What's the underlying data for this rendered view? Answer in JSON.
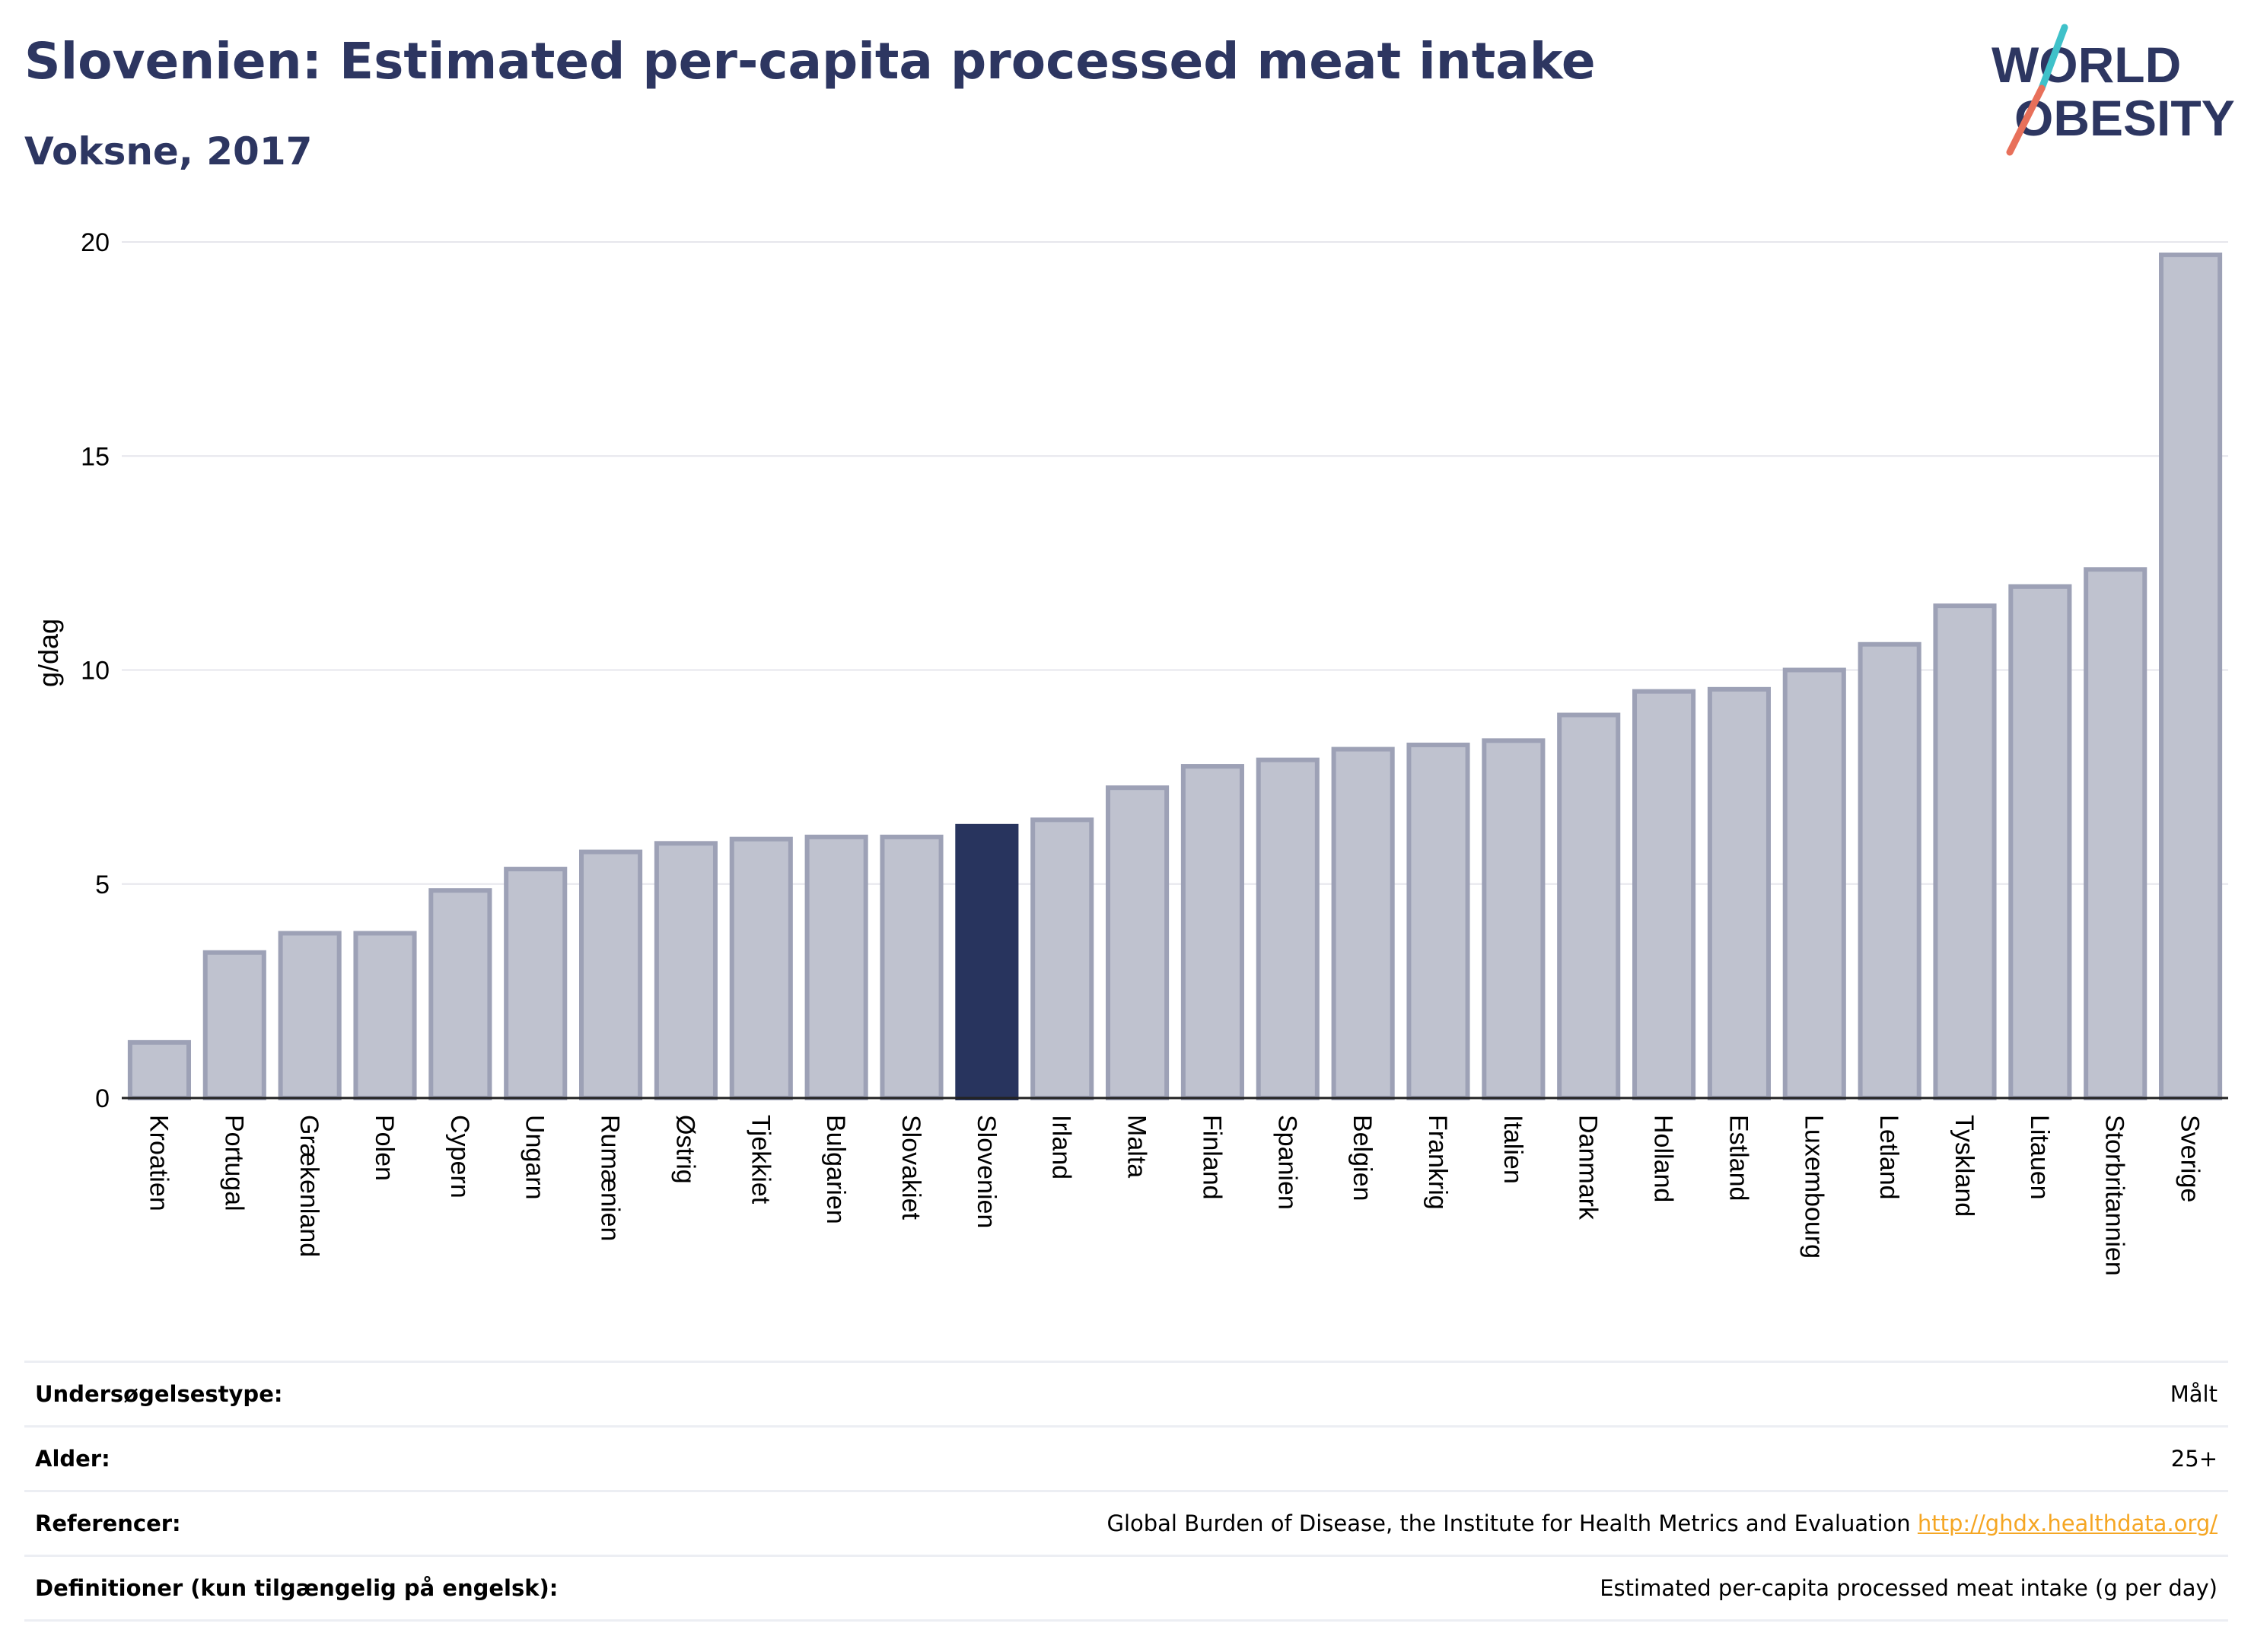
{
  "header": {
    "title": "Slovenien: Estimated per-capita processed meat intake",
    "subtitle": "Voksne, 2017"
  },
  "logo": {
    "line1": "WORLD",
    "line2": "OBESITY"
  },
  "colors": {
    "highlight": "#28345e",
    "bar_fill": "#bfc2cf",
    "bar_stroke": "#9da1b6",
    "title": "#2d3661",
    "grid": "#e6e6ec",
    "link": "#f5a623",
    "logo_teal": "#3fc1c9",
    "logo_coral": "#e8705a"
  },
  "chart_data": {
    "type": "bar",
    "title": "Slovenien: Estimated per-capita processed meat intake",
    "subtitle": "Voksne, 2017",
    "xlabel": "",
    "ylabel": "g/dag",
    "ylim": [
      0,
      20
    ],
    "yticks": [
      0,
      5,
      10,
      15,
      20
    ],
    "grid": true,
    "highlight": "Slovenien",
    "categories": [
      "Kroatien",
      "Portugal",
      "Grækenland",
      "Polen",
      "Cypern",
      "Ungarn",
      "Rumænien",
      "Østrig",
      "Tjekkiet",
      "Bulgarien",
      "Slovakiet",
      "Slovenien",
      "Irland",
      "Malta",
      "Finland",
      "Spanien",
      "Belgien",
      "Frankrig",
      "Italien",
      "Danmark",
      "Holland",
      "Estland",
      "Luxembourg",
      "Letland",
      "Tyskland",
      "Litauen",
      "Storbritannien",
      "Sverige"
    ],
    "values": [
      1.3,
      3.4,
      3.85,
      3.85,
      4.85,
      5.35,
      5.75,
      5.95,
      6.05,
      6.1,
      6.1,
      6.35,
      6.5,
      7.25,
      7.75,
      7.9,
      8.15,
      8.25,
      8.35,
      8.95,
      9.5,
      9.55,
      10.0,
      10.6,
      11.5,
      11.95,
      12.35,
      19.7
    ]
  },
  "info": {
    "rows": [
      {
        "label": "Undersøgelsestype:",
        "value": "Målt"
      },
      {
        "label": "Alder:",
        "value": "25+"
      },
      {
        "label": "Referencer:",
        "value": "Global Burden of Disease, the Institute for Health Metrics and Evaluation",
        "link": "http://ghdx.healthdata.org/"
      },
      {
        "label": "Definitioner (kun tilgængelig på engelsk):",
        "value": "Estimated per-capita processed meat intake (g per day)"
      }
    ]
  }
}
